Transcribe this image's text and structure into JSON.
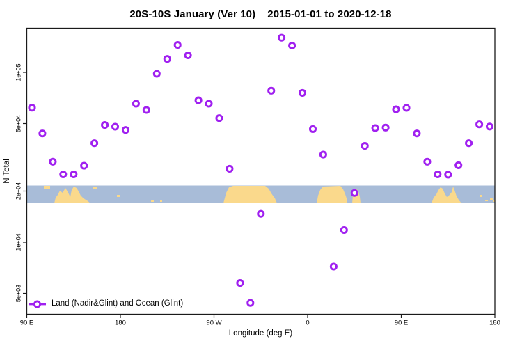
{
  "chart_data": {
    "type": "scatter",
    "title": "20S-10S January (Ver 10)    2015-01-01 to 2020-12-18",
    "xlabel": "Longitude (deg E)",
    "ylabel": "N Total",
    "x_axis": {
      "min": 90,
      "max": 540,
      "ticks": [
        {
          "value": 90,
          "label": "90 E"
        },
        {
          "value": 180,
          "label": "180"
        },
        {
          "value": 270,
          "label": "90 W"
        },
        {
          "value": 360,
          "label": "0"
        },
        {
          "value": 450,
          "label": "90 E"
        },
        {
          "value": 540,
          "label": "180"
        }
      ]
    },
    "y_axis": {
      "scale": "log",
      "min": 3700,
      "max": 183000,
      "ticks": [
        {
          "value": 100000,
          "label": "1e+05"
        },
        {
          "value": 50000,
          "label": "5e+04"
        },
        {
          "value": 20000,
          "label": "2e+04"
        },
        {
          "value": 10000,
          "label": "1e+04"
        },
        {
          "value": 5000,
          "label": "5e+03"
        }
      ]
    },
    "legend": {
      "position": "bottom-left"
    },
    "series": [
      {
        "name": "Land (Nadir&Glint) and Ocean (Glint)",
        "marker": "open-circle",
        "color": "#A020F0",
        "points": [
          [
            95,
            62000
          ],
          [
            105,
            43700
          ],
          [
            115,
            29800
          ],
          [
            125,
            25100
          ],
          [
            135,
            25100
          ],
          [
            145,
            28200
          ],
          [
            155,
            38300
          ],
          [
            165,
            49000
          ],
          [
            175,
            47900
          ],
          [
            185,
            45800
          ],
          [
            195,
            65400
          ],
          [
            205,
            60100
          ],
          [
            215,
            98100
          ],
          [
            225,
            120000
          ],
          [
            235,
            145000
          ],
          [
            245,
            126000
          ],
          [
            255,
            68500
          ],
          [
            265,
            65400
          ],
          [
            275,
            53800
          ],
          [
            285,
            27100
          ],
          [
            295,
            5750
          ],
          [
            305,
            4390
          ],
          [
            315,
            14700
          ],
          [
            325,
            78000
          ],
          [
            335,
            160000
          ],
          [
            345,
            144000
          ],
          [
            355,
            75800
          ],
          [
            365,
            46400
          ],
          [
            375,
            32800
          ],
          [
            385,
            7190
          ],
          [
            395,
            11800
          ],
          [
            405,
            19500
          ],
          [
            415,
            36900
          ],
          [
            425,
            47000
          ],
          [
            435,
            47300
          ],
          [
            445,
            60600
          ],
          [
            455,
            61800
          ],
          [
            465,
            43700
          ],
          [
            475,
            29800
          ],
          [
            485,
            25100
          ],
          [
            495,
            25000
          ],
          [
            505,
            28400
          ],
          [
            515,
            38300
          ],
          [
            525,
            49400
          ],
          [
            535,
            48000
          ]
        ]
      }
    ],
    "map_band": {
      "description": "world map strip for latitude band 20S-10S",
      "ocean_color": "#A8BCD8",
      "land_color": "#FAD98C"
    }
  },
  "colors": {
    "axis": "#1a1a1a",
    "marker": "#A020F0",
    "marker_fill": "#ffffff"
  }
}
